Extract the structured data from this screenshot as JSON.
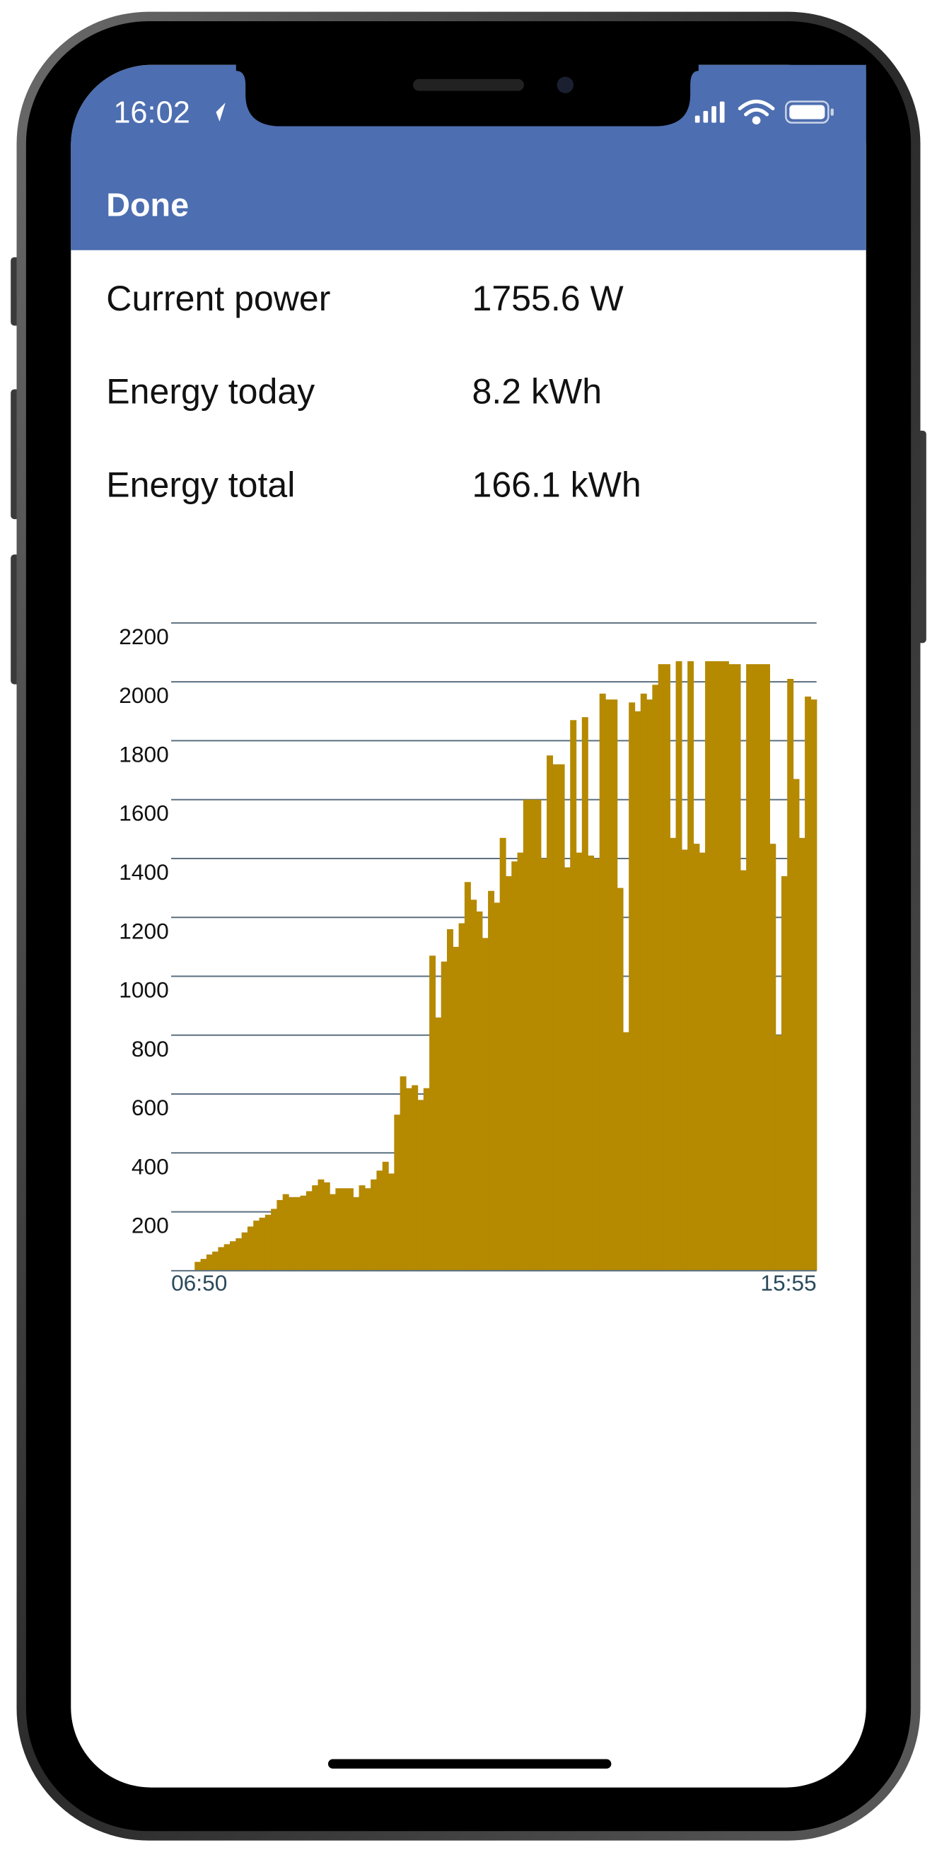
{
  "status_bar": {
    "time": "16:02"
  },
  "nav": {
    "done": "Done"
  },
  "rows": [
    {
      "label": "Current power",
      "value": "1755.6 W"
    },
    {
      "label": "Energy today",
      "value": "8.2 kWh"
    },
    {
      "label": "Energy total",
      "value": "166.1 kWh"
    }
  ],
  "chart_data": {
    "type": "bar",
    "color": "#b58900",
    "grid": true,
    "ylim": [
      0,
      2200
    ],
    "yticks": [
      200,
      400,
      600,
      800,
      1000,
      1200,
      1400,
      1600,
      1800,
      2000,
      2200
    ],
    "categories": [
      "06:50",
      null,
      null,
      null,
      null,
      null,
      null,
      null,
      null,
      null,
      null,
      null,
      null,
      null,
      null,
      null,
      null,
      null,
      null,
      null,
      null,
      null,
      null,
      null,
      null,
      null,
      null,
      null,
      null,
      null,
      null,
      null,
      null,
      null,
      null,
      null,
      null,
      null,
      null,
      null,
      null,
      null,
      null,
      null,
      null,
      null,
      null,
      null,
      null,
      null,
      null,
      null,
      null,
      null,
      null,
      null,
      null,
      null,
      null,
      null,
      null,
      null,
      null,
      null,
      null,
      null,
      null,
      null,
      null,
      null,
      null,
      null,
      null,
      null,
      null,
      null,
      null,
      null,
      null,
      null,
      null,
      null,
      null,
      null,
      null,
      null,
      null,
      null,
      null,
      null,
      null,
      null,
      null,
      null,
      null,
      null,
      null,
      null,
      null,
      null,
      null,
      null,
      null,
      null,
      null,
      null,
      null,
      null,
      null,
      "15:55"
    ],
    "values": [
      0,
      0,
      0,
      0,
      30,
      40,
      55,
      65,
      80,
      90,
      100,
      110,
      130,
      150,
      170,
      180,
      190,
      210,
      240,
      260,
      250,
      250,
      255,
      270,
      290,
      310,
      300,
      260,
      280,
      280,
      280,
      250,
      290,
      280,
      310,
      340,
      370,
      330,
      530,
      660,
      620,
      630,
      580,
      620,
      1070,
      860,
      1050,
      1160,
      1100,
      1180,
      1320,
      1260,
      1220,
      1130,
      1290,
      1250,
      1470,
      1340,
      1390,
      1420,
      1600,
      1600,
      1600,
      1400,
      1750,
      1720,
      1720,
      1370,
      1870,
      1420,
      1880,
      1410,
      1400,
      1960,
      1940,
      1940,
      1300,
      810,
      1930,
      1900,
      1960,
      1940,
      1990,
      2060,
      2060,
      1470,
      2070,
      1430,
      2070,
      1450,
      1420,
      2070,
      2070,
      2070,
      2070,
      2060,
      2060,
      1360,
      2060,
      2060,
      2060,
      2060,
      1450,
      800,
      1340,
      2010,
      1670,
      1470,
      1950,
      1940
    ]
  }
}
